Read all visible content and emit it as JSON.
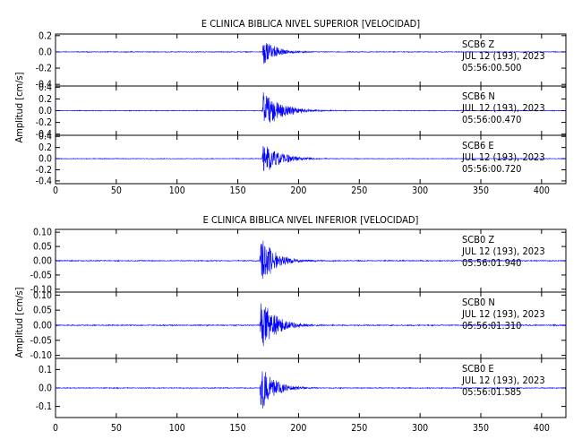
{
  "trace_color": "#0000ff",
  "chart_data": [
    {
      "type": "line",
      "title": "E CLINICA BIBLICA NIVEL SUPERIOR [VELOCIDAD]",
      "ylabel": "Amplitud [cm/s]",
      "xlim": [
        0,
        420
      ],
      "x_ticks": [
        0,
        50,
        100,
        150,
        200,
        250,
        300,
        350,
        400
      ],
      "panels": [
        {
          "station": "SCB6   Z",
          "date": "JUL 12 (193), 2023",
          "time": "05:56:00.500",
          "ylim": [
            -0.42,
            0.22
          ],
          "y_ticks": [
            "0.2",
            "0.0",
            "-0.2",
            "-0.4"
          ],
          "y_tick_values": [
            0.2,
            0.0,
            -0.2,
            -0.4
          ],
          "onset": 170,
          "peak": 0.17,
          "noise": 0.004,
          "decay": 11
        },
        {
          "station": "SCB6   N",
          "date": "JUL 12 (193), 2023",
          "time": "05:56:00.470",
          "ylim": [
            -0.42,
            0.42
          ],
          "y_ticks": [
            "0.4",
            "0.2",
            "0.0",
            "-0.2",
            "-0.4"
          ],
          "y_tick_values": [
            0.4,
            0.2,
            0.0,
            -0.2,
            -0.4
          ],
          "onset": 170,
          "peak": 0.36,
          "noise": 0.005,
          "decay": 14
        },
        {
          "station": "SCB6   E",
          "date": "JUL 12 (193), 2023",
          "time": "05:56:00.720",
          "ylim": [
            -0.45,
            0.42
          ],
          "y_ticks": [
            "0.4",
            "0.2",
            "0.0",
            "-0.2",
            "-0.4"
          ],
          "y_tick_values": [
            0.4,
            0.2,
            0.0,
            -0.2,
            -0.4
          ],
          "onset": 170,
          "peak": 0.33,
          "noise": 0.005,
          "decay": 13
        }
      ]
    },
    {
      "type": "line",
      "title": "E CLINICA BIBLICA NIVEL INFERIOR [VELOCIDAD]",
      "ylabel": "Amplitud [cm/s]",
      "xlim": [
        0,
        420
      ],
      "x_ticks": [
        0,
        50,
        100,
        150,
        200,
        250,
        300,
        350,
        400
      ],
      "panels": [
        {
          "station": "SCB0   Z",
          "date": "JUL 12 (193), 2023",
          "time": "05:56:01.940",
          "ylim": [
            -0.11,
            0.11
          ],
          "y_ticks": [
            "0.10",
            "0.05",
            "0.00",
            "-0.05",
            "-0.10"
          ],
          "y_tick_values": [
            0.1,
            0.05,
            0.0,
            -0.05,
            -0.1
          ],
          "onset": 168,
          "peak": 0.095,
          "noise": 0.0015,
          "decay": 11
        },
        {
          "station": "SCB0   N",
          "date": "JUL 12 (193), 2023",
          "time": "05:56:01.310",
          "ylim": [
            -0.11,
            0.11
          ],
          "y_ticks": [
            "0.10",
            "0.05",
            "0.00",
            "-0.05",
            "-0.10"
          ],
          "y_tick_values": [
            0.1,
            0.05,
            0.0,
            -0.05,
            -0.1
          ],
          "onset": 168,
          "peak": 0.095,
          "noise": 0.0015,
          "decay": 12
        },
        {
          "station": "SCB0   E",
          "date": "JUL 12 (193), 2023",
          "time": "05:56:01.585",
          "ylim": [
            -0.16,
            0.16
          ],
          "y_ticks": [
            "0.1",
            "0.0",
            "-0.1"
          ],
          "y_tick_values": [
            0.1,
            0.0,
            -0.1
          ],
          "onset": 168,
          "peak": 0.13,
          "noise": 0.002,
          "decay": 11
        }
      ]
    }
  ]
}
